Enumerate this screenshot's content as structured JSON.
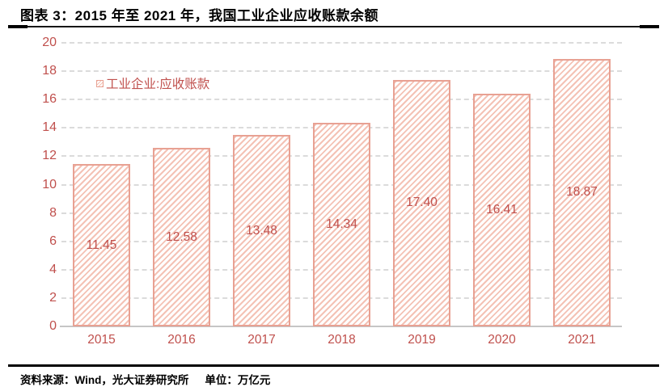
{
  "header": {
    "title": "图表 3：2015 年至 2021 年，我国工业企业应收账款余额"
  },
  "legend": {
    "label": "工业企业:应收账款"
  },
  "footer": {
    "source": "资料来源：Wind，光大证券研究所",
    "unit": "单位：万亿元"
  },
  "chart_data": {
    "type": "bar",
    "categories": [
      "2015",
      "2016",
      "2017",
      "2018",
      "2019",
      "2020",
      "2021"
    ],
    "values": [
      11.45,
      12.58,
      13.48,
      14.34,
      17.4,
      16.41,
      18.87
    ],
    "series_name": "工业企业:应收账款",
    "title": "2015 年至 2021 年，我国工业企业应收账款余额",
    "xlabel": "",
    "ylabel": "",
    "unit": "万亿元",
    "ylim": [
      0,
      20
    ],
    "ytick_step": 2,
    "grid": true,
    "gridline_style": "dashed",
    "legend_position": "inside-top-left",
    "value_labels": "center-of-bar",
    "value_label_decimals": 2,
    "colors": {
      "bar_border": "#E8A193",
      "bar_hatch": "#F4C2B5",
      "bar_fill": "#FFFFFF",
      "text_accent": "#C0504D",
      "gridline": "#DBDBDB",
      "axis_line": "#C6C6C6",
      "title_text": "#000000"
    }
  }
}
